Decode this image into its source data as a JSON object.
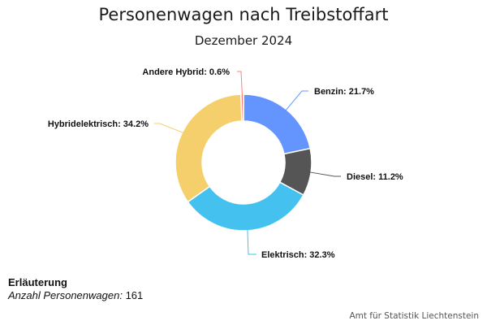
{
  "chart_data": {
    "type": "pie",
    "variant": "donut",
    "title": "Personenwagen nach Treibstoffart",
    "subtitle": "Dezember 2024",
    "start_angle_deg": 0,
    "direction": "clockwise",
    "slices": [
      {
        "name": "Benzin",
        "value": 21.7,
        "color": "#6495ff",
        "label": "Benzin: 21.7%",
        "side": "right"
      },
      {
        "name": "Diesel",
        "value": 11.2,
        "color": "#555555",
        "label": "Diesel: 11.2%",
        "side": "right"
      },
      {
        "name": "Elektrisch",
        "value": 32.3,
        "color": "#44c1ee",
        "label": "Elektrisch: 32.3%",
        "side": "right"
      },
      {
        "name": "Hybridelektrisch",
        "value": 34.2,
        "color": "#f5cf6b",
        "label": "Hybridelektrisch: 34.2%",
        "side": "left"
      },
      {
        "name": "Andere Hybrid",
        "value": 0.6,
        "color": "#ff8080",
        "label": "Andere Hybrid: 0.6%",
        "side": "left"
      }
    ],
    "unit": "%"
  },
  "note": {
    "heading": "Erläuterung",
    "key": "Anzahl Personenwagen:",
    "value": "161"
  },
  "credit": "Amt für Statistik Liechtenstein"
}
